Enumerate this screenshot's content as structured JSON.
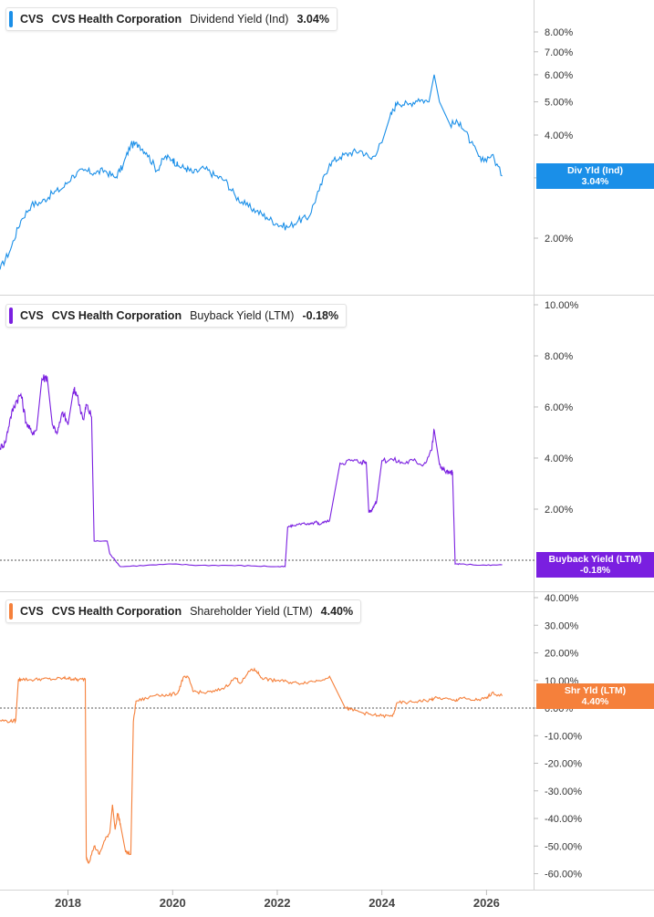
{
  "chart_data": [
    {
      "type": "line",
      "legend": {
        "ticker": "CVS",
        "company": "CVS Health Corporation",
        "metric": "Dividend Yield (Ind)",
        "value": "3.04%"
      },
      "tag": {
        "label": "Div Yld (Ind)",
        "value": "3.04%"
      },
      "color": "#1a8fe8",
      "scale": "log",
      "ylim": [
        1.5,
        10
      ],
      "y_ticks": [
        "2.00%",
        "3.00%",
        "4.00%",
        "5.00%",
        "6.00%",
        "7.00%",
        "8.00%"
      ],
      "y_tick_values": [
        2,
        3,
        4,
        5,
        6,
        7,
        8
      ],
      "series": [
        {
          "x": [
            2016.7,
            2016.9,
            2017.1,
            2017.3,
            2017.5,
            2017.7,
            2017.9,
            2018.1,
            2018.3,
            2018.5,
            2018.7,
            2018.9,
            2019.05,
            2019.2,
            2019.35,
            2019.5,
            2019.7,
            2019.85,
            2020.0,
            2020.1,
            2020.25,
            2020.4,
            2020.6,
            2020.8,
            2021.0,
            2021.2,
            2021.4,
            2021.6,
            2021.8,
            2022.0,
            2022.2,
            2022.4,
            2022.6,
            2022.8,
            2023.0,
            2023.2,
            2023.4,
            2023.6,
            2023.8,
            2024.0,
            2024.15,
            2024.3,
            2024.5,
            2024.7,
            2024.9,
            2025.0,
            2025.1,
            2025.3,
            2025.5,
            2025.7,
            2025.9,
            2026.1,
            2026.3
          ],
          "y": [
            1.62,
            1.85,
            2.25,
            2.5,
            2.55,
            2.7,
            2.8,
            3.05,
            3.15,
            3.1,
            3.15,
            3.0,
            3.25,
            3.75,
            3.75,
            3.55,
            3.15,
            3.45,
            3.4,
            3.25,
            3.2,
            3.1,
            3.2,
            3.05,
            2.95,
            2.65,
            2.5,
            2.4,
            2.3,
            2.2,
            2.15,
            2.25,
            2.3,
            2.75,
            3.3,
            3.45,
            3.55,
            3.6,
            3.4,
            3.8,
            4.5,
            5.0,
            4.9,
            5.1,
            5.0,
            6.0,
            5.0,
            4.3,
            4.35,
            3.8,
            3.35,
            3.5,
            3.04
          ]
        }
      ]
    },
    {
      "type": "line",
      "legend": {
        "ticker": "CVS",
        "company": "CVS Health Corporation",
        "metric": "Buyback Yield (LTM)",
        "value": "-0.18%"
      },
      "tag": {
        "label": "Buyback Yield (LTM)",
        "value": "-0.18%"
      },
      "color": "#7a1fe0",
      "scale": "linear",
      "ylim": [
        -1.5,
        10.5
      ],
      "reference_line": 0,
      "y_ticks": [
        "2.00%",
        "4.00%",
        "6.00%",
        "8.00%",
        "10.00%"
      ],
      "y_tick_values": [
        2,
        4,
        6,
        8,
        10
      ],
      "series": [
        {
          "x": [
            2016.7,
            2016.8,
            2016.9,
            2017.0,
            2017.1,
            2017.2,
            2017.3,
            2017.4,
            2017.5,
            2017.6,
            2017.7,
            2017.8,
            2017.9,
            2018.0,
            2018.1,
            2018.15,
            2018.3,
            2018.35,
            2018.45,
            2018.5,
            2018.75,
            2018.8,
            2019.0,
            2019.5,
            2020.0,
            2020.5,
            2021.0,
            2021.5,
            2022.0,
            2022.15,
            2022.2,
            2022.3,
            2022.5,
            2022.6,
            2022.7,
            2022.75,
            2022.8,
            2022.9,
            2023.0,
            2023.2,
            2023.4,
            2023.6,
            2023.7,
            2023.75,
            2023.8,
            2023.85,
            2023.9,
            2024.0,
            2024.2,
            2024.4,
            2024.6,
            2024.8,
            2024.95,
            2025.0,
            2025.1,
            2025.2,
            2025.3,
            2025.35,
            2025.4,
            2025.5,
            2026.0,
            2026.3
          ],
          "y": [
            4.4,
            4.6,
            5.6,
            6.2,
            6.5,
            5.4,
            5.0,
            5.1,
            7.1,
            7.2,
            5.3,
            5.0,
            5.8,
            5.3,
            6.6,
            6.6,
            5.5,
            6.1,
            5.6,
            0.75,
            0.75,
            0.25,
            -0.25,
            -0.2,
            -0.15,
            -0.2,
            -0.2,
            -0.22,
            -0.25,
            -0.25,
            1.3,
            1.35,
            1.45,
            1.4,
            1.45,
            1.5,
            1.4,
            1.5,
            1.55,
            3.8,
            3.9,
            3.85,
            3.85,
            1.9,
            1.95,
            2.15,
            2.3,
            3.9,
            3.95,
            3.8,
            3.9,
            3.75,
            4.3,
            5.1,
            3.75,
            3.5,
            3.4,
            3.45,
            -0.15,
            -0.15,
            -0.2,
            -0.18
          ]
        }
      ]
    },
    {
      "type": "line",
      "legend": {
        "ticker": "CVS",
        "company": "CVS Health Corporation",
        "metric": "Shareholder Yield (LTM)",
        "value": "4.40%"
      },
      "tag": {
        "label": "Shr Yld (LTM)",
        "value": "4.40%"
      },
      "color": "#f5803b",
      "scale": "linear",
      "ylim": [
        -64,
        44
      ],
      "reference_line": 0,
      "y_ticks": [
        "40.00%",
        "30.00%",
        "20.00%",
        "10.00%",
        "0.00%",
        "-10.00%",
        "-20.00%",
        "-30.00%",
        "-40.00%",
        "-50.00%",
        "-60.00%"
      ],
      "y_tick_values": [
        40,
        30,
        20,
        10,
        0,
        -10,
        -20,
        -30,
        -40,
        -50,
        -60
      ],
      "series": [
        {
          "x": [
            2016.7,
            2016.9,
            2017.0,
            2017.05,
            2017.1,
            2017.3,
            2017.5,
            2017.7,
            2017.9,
            2018.0,
            2018.1,
            2018.2,
            2018.33,
            2018.35,
            2018.4,
            2018.5,
            2018.6,
            2018.7,
            2018.8,
            2018.85,
            2018.9,
            2018.95,
            2019.0,
            2019.1,
            2019.2,
            2019.25,
            2019.3,
            2019.5,
            2019.7,
            2019.9,
            2020.1,
            2020.2,
            2020.3,
            2020.4,
            2020.6,
            2020.8,
            2021.0,
            2021.2,
            2021.3,
            2021.5,
            2021.6,
            2021.7,
            2021.9,
            2022.0,
            2022.2,
            2022.4,
            2022.6,
            2022.8,
            2023.0,
            2023.3,
            2023.4,
            2023.6,
            2023.8,
            2024.0,
            2024.2,
            2024.3,
            2024.5,
            2024.7,
            2024.9,
            2025.0,
            2025.2,
            2025.4,
            2025.5,
            2025.7,
            2025.9,
            2026.0,
            2026.1,
            2026.3
          ],
          "y": [
            -4.5,
            -4.8,
            -4.5,
            10,
            10.5,
            10.2,
            10.6,
            10.4,
            10.8,
            10.8,
            10.5,
            10.2,
            10.5,
            -54,
            -56,
            -50,
            -53,
            -48,
            -45,
            -35,
            -44,
            -38,
            -42,
            -52,
            -53,
            -5,
            2.5,
            3.5,
            5,
            4.5,
            5.5,
            11,
            11,
            6,
            5.5,
            6,
            7.5,
            11,
            9,
            14,
            13.5,
            11,
            10,
            10,
            9.5,
            9,
            9.5,
            10,
            11.5,
            0,
            -0.5,
            -1.5,
            -2.5,
            -2.8,
            -3,
            2,
            2,
            2.5,
            2.8,
            3.5,
            3.5,
            2.5,
            3.8,
            2.8,
            3.2,
            3.5,
            5.5,
            4.4
          ]
        }
      ]
    }
  ],
  "x_axis": {
    "ticks": [
      "2018",
      "2020",
      "2022",
      "2024",
      "2026"
    ],
    "tick_values": [
      2018,
      2020,
      2022,
      2024,
      2026
    ]
  }
}
